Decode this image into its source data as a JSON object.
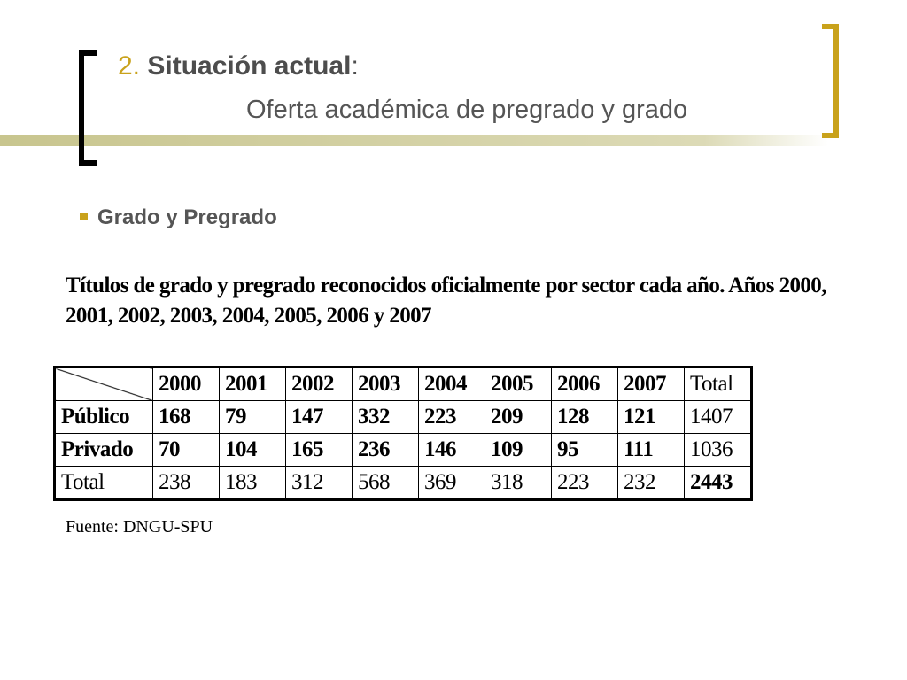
{
  "header": {
    "number": "2.",
    "title": "Situación actual",
    "colon": ":",
    "subtitle": "Oferta académica de pregrado y grado"
  },
  "bullet": "Grado y Pregrado",
  "caption": "Títulos de grado y pregrado reconocidos oficialmente por sector cada año. Años 2000, 2001, 2002, 2003, 2004, 2005, 2006 y 2007",
  "table": {
    "columns": [
      "2000",
      "2001",
      "2002",
      "2003",
      "2004",
      "2005",
      "2006",
      "2007",
      "Total"
    ],
    "rows": [
      {
        "label": "Público",
        "values": [
          168,
          79,
          147,
          332,
          223,
          209,
          128,
          121,
          1407
        ]
      },
      {
        "label": "Privado",
        "values": [
          70,
          104,
          165,
          236,
          146,
          109,
          95,
          111,
          1036
        ]
      },
      {
        "label": "Total",
        "values": [
          238,
          183,
          312,
          568,
          369,
          318,
          223,
          232,
          2443
        ]
      }
    ]
  },
  "source": "Fuente: DNGU-SPU"
}
